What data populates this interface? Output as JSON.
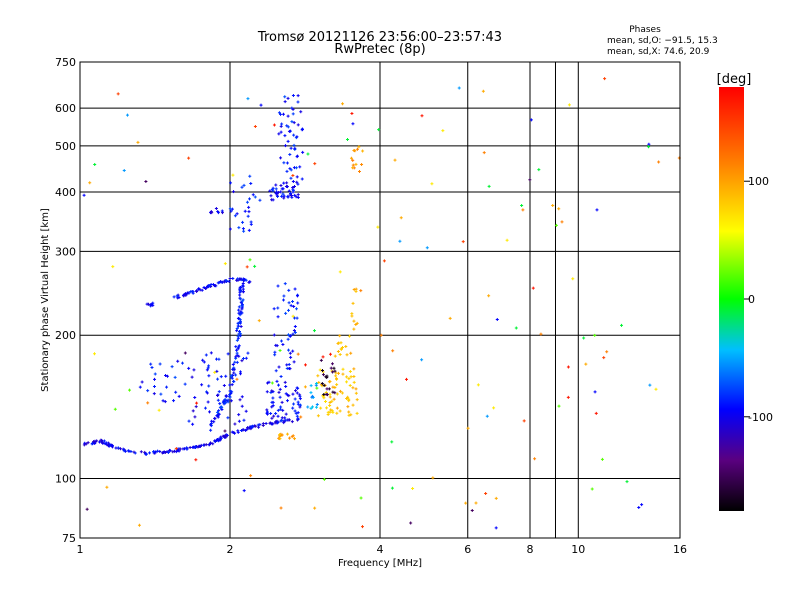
{
  "chart_data": {
    "type": "scatter",
    "title": "Tromsø 20121126 23:56:00–23:57:43",
    "subtitle": "RwPretec (8p)",
    "xlabel": "Frequency [MHz]",
    "ylabel": "Stationary phase Virtual Height [km]",
    "x_scale": "log",
    "y_scale": "log",
    "xlim": [
      1,
      16
    ],
    "ylim": [
      75,
      750
    ],
    "x_ticks": [
      1,
      2,
      4,
      6,
      8,
      9,
      10,
      16
    ],
    "x_tick_labels": [
      "1",
      "2",
      "4",
      "6",
      "8",
      "",
      "10",
      "16"
    ],
    "x_grid": [
      2,
      4,
      6,
      8,
      9,
      10
    ],
    "y_ticks": [
      75,
      100,
      200,
      300,
      400,
      500,
      600,
      750
    ],
    "y_grid": [
      100,
      200,
      300,
      400,
      500,
      600
    ],
    "grid": true,
    "stats": {
      "heading": "Phases",
      "line1": "mean, sd,O: −91.5, 15.3",
      "line2": "mean, sd,X:  74.6, 20.9"
    },
    "colorbar": {
      "label": "[deg]",
      "range": [
        -180,
        180
      ],
      "ticks": [
        100,
        0,
        -100
      ],
      "tick_labels": [
        "100",
        "0",
        "-100"
      ],
      "placement": "right"
    },
    "clusters": [
      {
        "type": "curve",
        "pts": [
          [
            1.02,
            118
          ],
          [
            1.1,
            120
          ],
          [
            1.2,
            115
          ],
          [
            1.35,
            113
          ],
          [
            1.5,
            114
          ],
          [
            1.7,
            116
          ],
          [
            1.85,
            119
          ],
          [
            2.0,
            124
          ],
          [
            2.2,
            128
          ],
          [
            2.45,
            131
          ],
          [
            2.75,
            133
          ]
        ],
        "phase": -105,
        "n": 180,
        "spread": 0.012
      },
      {
        "type": "curve",
        "pts": [
          [
            1.8,
            125
          ],
          [
            1.9,
            138
          ],
          [
            2.0,
            152
          ],
          [
            2.05,
            170
          ],
          [
            2.08,
            200
          ],
          [
            2.1,
            230
          ],
          [
            2.12,
            265
          ]
        ],
        "phase": -95,
        "n": 120,
        "spread": 0.02
      },
      {
        "type": "curve",
        "pts": [
          [
            1.55,
            240
          ],
          [
            1.75,
            250
          ],
          [
            2.0,
            262
          ],
          [
            2.2,
            260
          ]
        ],
        "phase": -100,
        "n": 70,
        "spread": 0.015
      },
      {
        "type": "box",
        "f": [
          1.6,
          2.2
        ],
        "h": [
          130,
          185
        ],
        "phase": -100,
        "n": 60
      },
      {
        "type": "box",
        "f": [
          1.3,
          1.6
        ],
        "h": [
          145,
          180
        ],
        "phase": -95,
        "n": 22
      },
      {
        "type": "box",
        "f": [
          2.35,
          2.8
        ],
        "h": [
          132,
          160
        ],
        "phase": -100,
        "n": 60
      },
      {
        "type": "box",
        "f": [
          2.45,
          2.75
        ],
        "h": [
          160,
          260
        ],
        "phase": -95,
        "n": 50
      },
      {
        "type": "box",
        "f": [
          2.4,
          2.75
        ],
        "h": [
          385,
          420
        ],
        "phase": -100,
        "n": 45
      },
      {
        "type": "box",
        "f": [
          2.5,
          2.8
        ],
        "h": [
          420,
          640
        ],
        "phase": -95,
        "n": 55
      },
      {
        "type": "box",
        "f": [
          2.0,
          2.3
        ],
        "h": [
          330,
          440
        ],
        "phase": -95,
        "n": 28
      },
      {
        "type": "box",
        "f": [
          1.82,
          1.95
        ],
        "h": [
          360,
          370
        ],
        "phase": -105,
        "n": 8
      },
      {
        "type": "box",
        "f": [
          1.35,
          1.4
        ],
        "h": [
          230,
          234
        ],
        "phase": -105,
        "n": 8
      },
      {
        "type": "box",
        "f": [
          2.85,
          3.0
        ],
        "h": [
          140,
          160
        ],
        "phase": -60,
        "n": 12
      },
      {
        "type": "box",
        "f": [
          3.0,
          3.6
        ],
        "h": [
          135,
          170
        ],
        "phase": 88,
        "n": 70
      },
      {
        "type": "box",
        "f": [
          3.25,
          3.5
        ],
        "h": [
          180,
          200
        ],
        "phase": 95,
        "n": 14
      },
      {
        "type": "box",
        "f": [
          2.5,
          2.7
        ],
        "h": [
          121,
          124
        ],
        "phase": 100,
        "n": 14
      },
      {
        "type": "box",
        "f": [
          3.05,
          3.25
        ],
        "h": [
          150,
          180
        ],
        "phase": -160,
        "n": 20
      },
      {
        "type": "box",
        "f": [
          3.5,
          3.7
        ],
        "h": [
          440,
          500
        ],
        "phase": 110,
        "n": 14
      },
      {
        "type": "box",
        "f": [
          3.5,
          3.7
        ],
        "h": [
          200,
          250
        ],
        "phase": 95,
        "n": 10
      },
      {
        "type": "box",
        "f": [
          1.0,
          16.0
        ],
        "h": [
          76,
          700
        ],
        "phase": null,
        "n": 140
      }
    ]
  }
}
